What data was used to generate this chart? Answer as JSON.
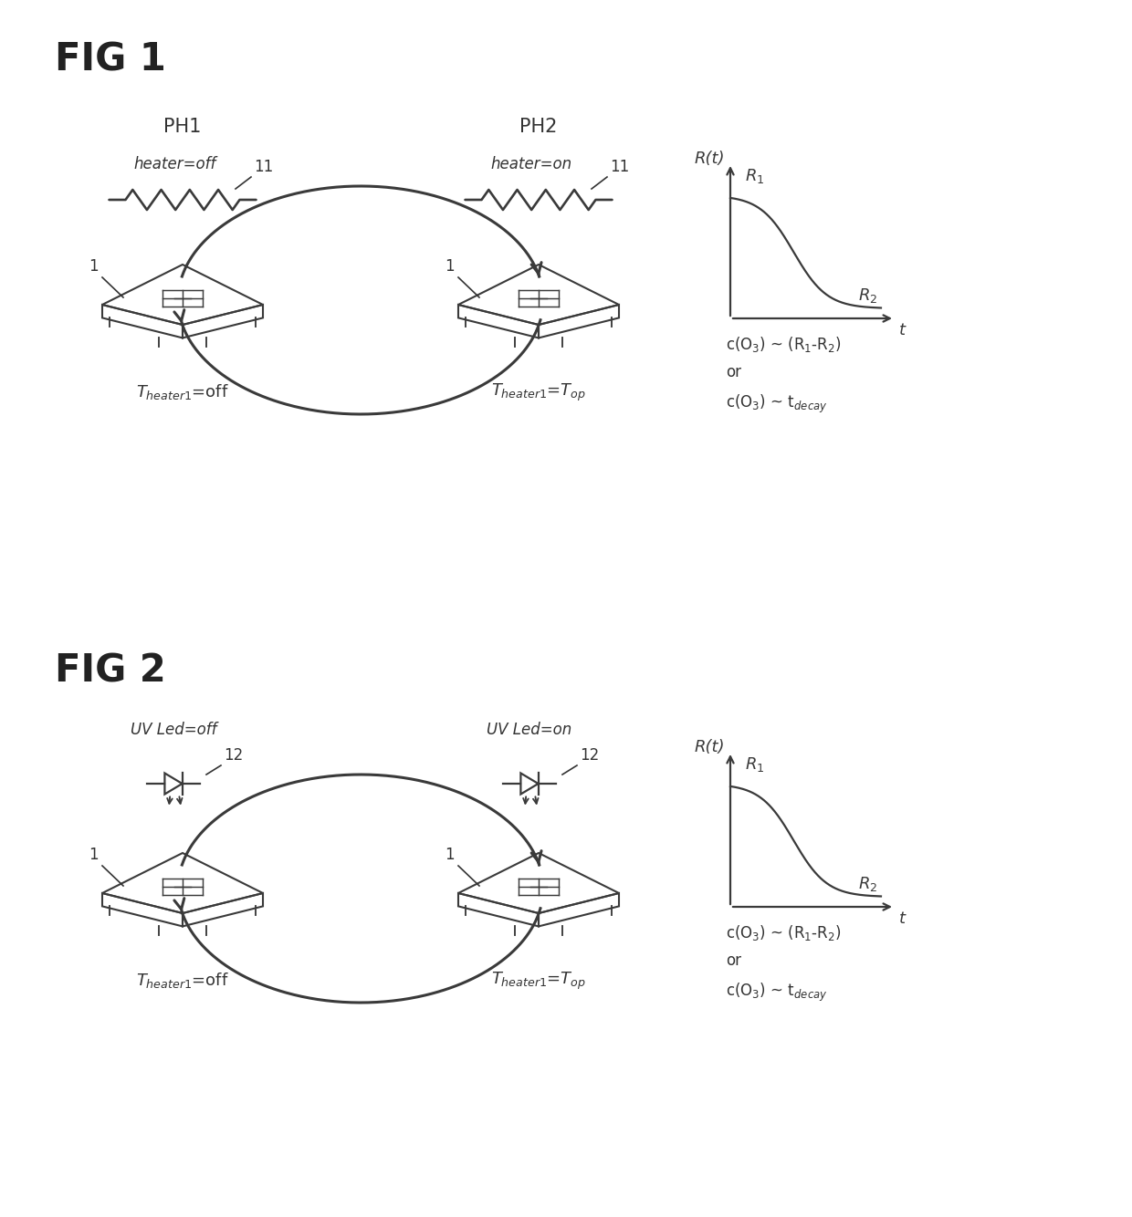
{
  "bg_color": "#ffffff",
  "line_color": "#3a3a3a",
  "text_color": "#333333",
  "fig1_label": "FIG 1",
  "fig2_label": "FIG 2",
  "lw_main": 1.8,
  "lw_chip": 1.5,
  "lw_arrow": 2.2
}
